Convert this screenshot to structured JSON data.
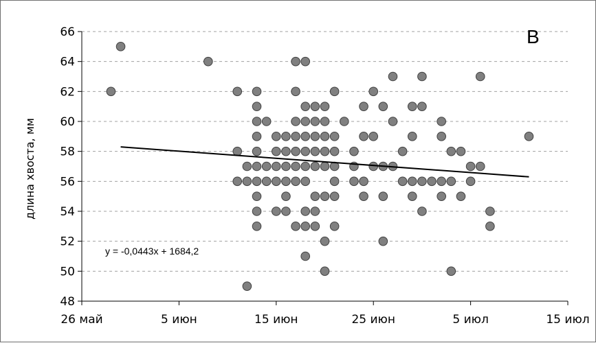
{
  "chart_data": {
    "type": "scatter",
    "title": "",
    "panel_label": "В",
    "xlabel": "",
    "ylabel": "длина хвоста, мм",
    "x_ticks": [
      "26 май",
      "5 июн",
      "15 июн",
      "25 июн",
      "5 июл",
      "15 июл"
    ],
    "x_tick_dates": [
      "05-26",
      "06-05",
      "06-15",
      "06-25",
      "07-05",
      "07-15"
    ],
    "xlim": [
      "05-26",
      "07-15"
    ],
    "y_ticks": [
      48,
      50,
      52,
      54,
      56,
      58,
      60,
      62,
      64,
      66
    ],
    "ylim": [
      48,
      66
    ],
    "grid": {
      "horizontal": true,
      "style": "dashed"
    },
    "legend": "none",
    "marker_color": "#808080",
    "marker_edge": "#404040",
    "trendline": {
      "type": "linear",
      "equation_label": "y = -0,0443x + 1684,2",
      "from": {
        "x": "05-30",
        "y": 58.3
      },
      "to": {
        "x": "07-11",
        "y": 56.3
      },
      "color": "#000000"
    },
    "points": [
      {
        "x": "05-29",
        "y": 62
      },
      {
        "x": "05-30",
        "y": 65
      },
      {
        "x": "06-08",
        "y": 64
      },
      {
        "x": "06-11",
        "y": 62
      },
      {
        "x": "06-11",
        "y": 58
      },
      {
        "x": "06-11",
        "y": 56
      },
      {
        "x": "06-12",
        "y": 57
      },
      {
        "x": "06-12",
        "y": 56
      },
      {
        "x": "06-12",
        "y": 49
      },
      {
        "x": "06-13",
        "y": 62
      },
      {
        "x": "06-13",
        "y": 61
      },
      {
        "x": "06-13",
        "y": 60
      },
      {
        "x": "06-13",
        "y": 59
      },
      {
        "x": "06-13",
        "y": 58
      },
      {
        "x": "06-13",
        "y": 57
      },
      {
        "x": "06-13",
        "y": 56
      },
      {
        "x": "06-13",
        "y": 55
      },
      {
        "x": "06-13",
        "y": 54
      },
      {
        "x": "06-13",
        "y": 53
      },
      {
        "x": "06-14",
        "y": 60
      },
      {
        "x": "06-14",
        "y": 57
      },
      {
        "x": "06-14",
        "y": 56
      },
      {
        "x": "06-15",
        "y": 59
      },
      {
        "x": "06-15",
        "y": 58
      },
      {
        "x": "06-15",
        "y": 57
      },
      {
        "x": "06-15",
        "y": 56
      },
      {
        "x": "06-15",
        "y": 54
      },
      {
        "x": "06-16",
        "y": 59
      },
      {
        "x": "06-16",
        "y": 58
      },
      {
        "x": "06-16",
        "y": 57
      },
      {
        "x": "06-16",
        "y": 56
      },
      {
        "x": "06-16",
        "y": 55
      },
      {
        "x": "06-16",
        "y": 54
      },
      {
        "x": "06-17",
        "y": 64
      },
      {
        "x": "06-17",
        "y": 62
      },
      {
        "x": "06-17",
        "y": 60
      },
      {
        "x": "06-17",
        "y": 59
      },
      {
        "x": "06-17",
        "y": 58
      },
      {
        "x": "06-17",
        "y": 57
      },
      {
        "x": "06-17",
        "y": 56
      },
      {
        "x": "06-17",
        "y": 53
      },
      {
        "x": "06-18",
        "y": 64
      },
      {
        "x": "06-18",
        "y": 61
      },
      {
        "x": "06-18",
        "y": 60
      },
      {
        "x": "06-18",
        "y": 59
      },
      {
        "x": "06-18",
        "y": 58
      },
      {
        "x": "06-18",
        "y": 57
      },
      {
        "x": "06-18",
        "y": 56
      },
      {
        "x": "06-18",
        "y": 54
      },
      {
        "x": "06-18",
        "y": 53
      },
      {
        "x": "06-18",
        "y": 51
      },
      {
        "x": "06-19",
        "y": 61
      },
      {
        "x": "06-19",
        "y": 60
      },
      {
        "x": "06-19",
        "y": 59
      },
      {
        "x": "06-19",
        "y": 58
      },
      {
        "x": "06-19",
        "y": 57
      },
      {
        "x": "06-19",
        "y": 55
      },
      {
        "x": "06-19",
        "y": 54
      },
      {
        "x": "06-19",
        "y": 53
      },
      {
        "x": "06-20",
        "y": 61
      },
      {
        "x": "06-20",
        "y": 60
      },
      {
        "x": "06-20",
        "y": 59
      },
      {
        "x": "06-20",
        "y": 58
      },
      {
        "x": "06-20",
        "y": 57
      },
      {
        "x": "06-20",
        "y": 55
      },
      {
        "x": "06-20",
        "y": 52
      },
      {
        "x": "06-20",
        "y": 50
      },
      {
        "x": "06-21",
        "y": 62
      },
      {
        "x": "06-21",
        "y": 59
      },
      {
        "x": "06-21",
        "y": 58
      },
      {
        "x": "06-21",
        "y": 57
      },
      {
        "x": "06-21",
        "y": 56
      },
      {
        "x": "06-21",
        "y": 55
      },
      {
        "x": "06-21",
        "y": 53
      },
      {
        "x": "06-22",
        "y": 60
      },
      {
        "x": "06-23",
        "y": 58
      },
      {
        "x": "06-23",
        "y": 57
      },
      {
        "x": "06-23",
        "y": 56
      },
      {
        "x": "06-24",
        "y": 61
      },
      {
        "x": "06-24",
        "y": 59
      },
      {
        "x": "06-24",
        "y": 56
      },
      {
        "x": "06-24",
        "y": 55
      },
      {
        "x": "06-25",
        "y": 62
      },
      {
        "x": "06-25",
        "y": 59
      },
      {
        "x": "06-25",
        "y": 57
      },
      {
        "x": "06-26",
        "y": 61
      },
      {
        "x": "06-26",
        "y": 57
      },
      {
        "x": "06-26",
        "y": 55
      },
      {
        "x": "06-26",
        "y": 52
      },
      {
        "x": "06-27",
        "y": 63
      },
      {
        "x": "06-27",
        "y": 60
      },
      {
        "x": "06-27",
        "y": 57
      },
      {
        "x": "06-28",
        "y": 58
      },
      {
        "x": "06-28",
        "y": 56
      },
      {
        "x": "06-29",
        "y": 61
      },
      {
        "x": "06-29",
        "y": 59
      },
      {
        "x": "06-29",
        "y": 56
      },
      {
        "x": "06-29",
        "y": 55
      },
      {
        "x": "06-30",
        "y": 63
      },
      {
        "x": "06-30",
        "y": 61
      },
      {
        "x": "06-30",
        "y": 56
      },
      {
        "x": "06-30",
        "y": 54
      },
      {
        "x": "07-01",
        "y": 56
      },
      {
        "x": "07-02",
        "y": 60
      },
      {
        "x": "07-02",
        "y": 59
      },
      {
        "x": "07-02",
        "y": 56
      },
      {
        "x": "07-02",
        "y": 55
      },
      {
        "x": "07-03",
        "y": 58
      },
      {
        "x": "07-03",
        "y": 56
      },
      {
        "x": "07-03",
        "y": 50
      },
      {
        "x": "07-04",
        "y": 58
      },
      {
        "x": "07-04",
        "y": 55
      },
      {
        "x": "07-05",
        "y": 57
      },
      {
        "x": "07-05",
        "y": 56
      },
      {
        "x": "07-06",
        "y": 63
      },
      {
        "x": "07-06",
        "y": 57
      },
      {
        "x": "07-07",
        "y": 54
      },
      {
        "x": "07-07",
        "y": 53
      },
      {
        "x": "07-11",
        "y": 59
      }
    ]
  }
}
